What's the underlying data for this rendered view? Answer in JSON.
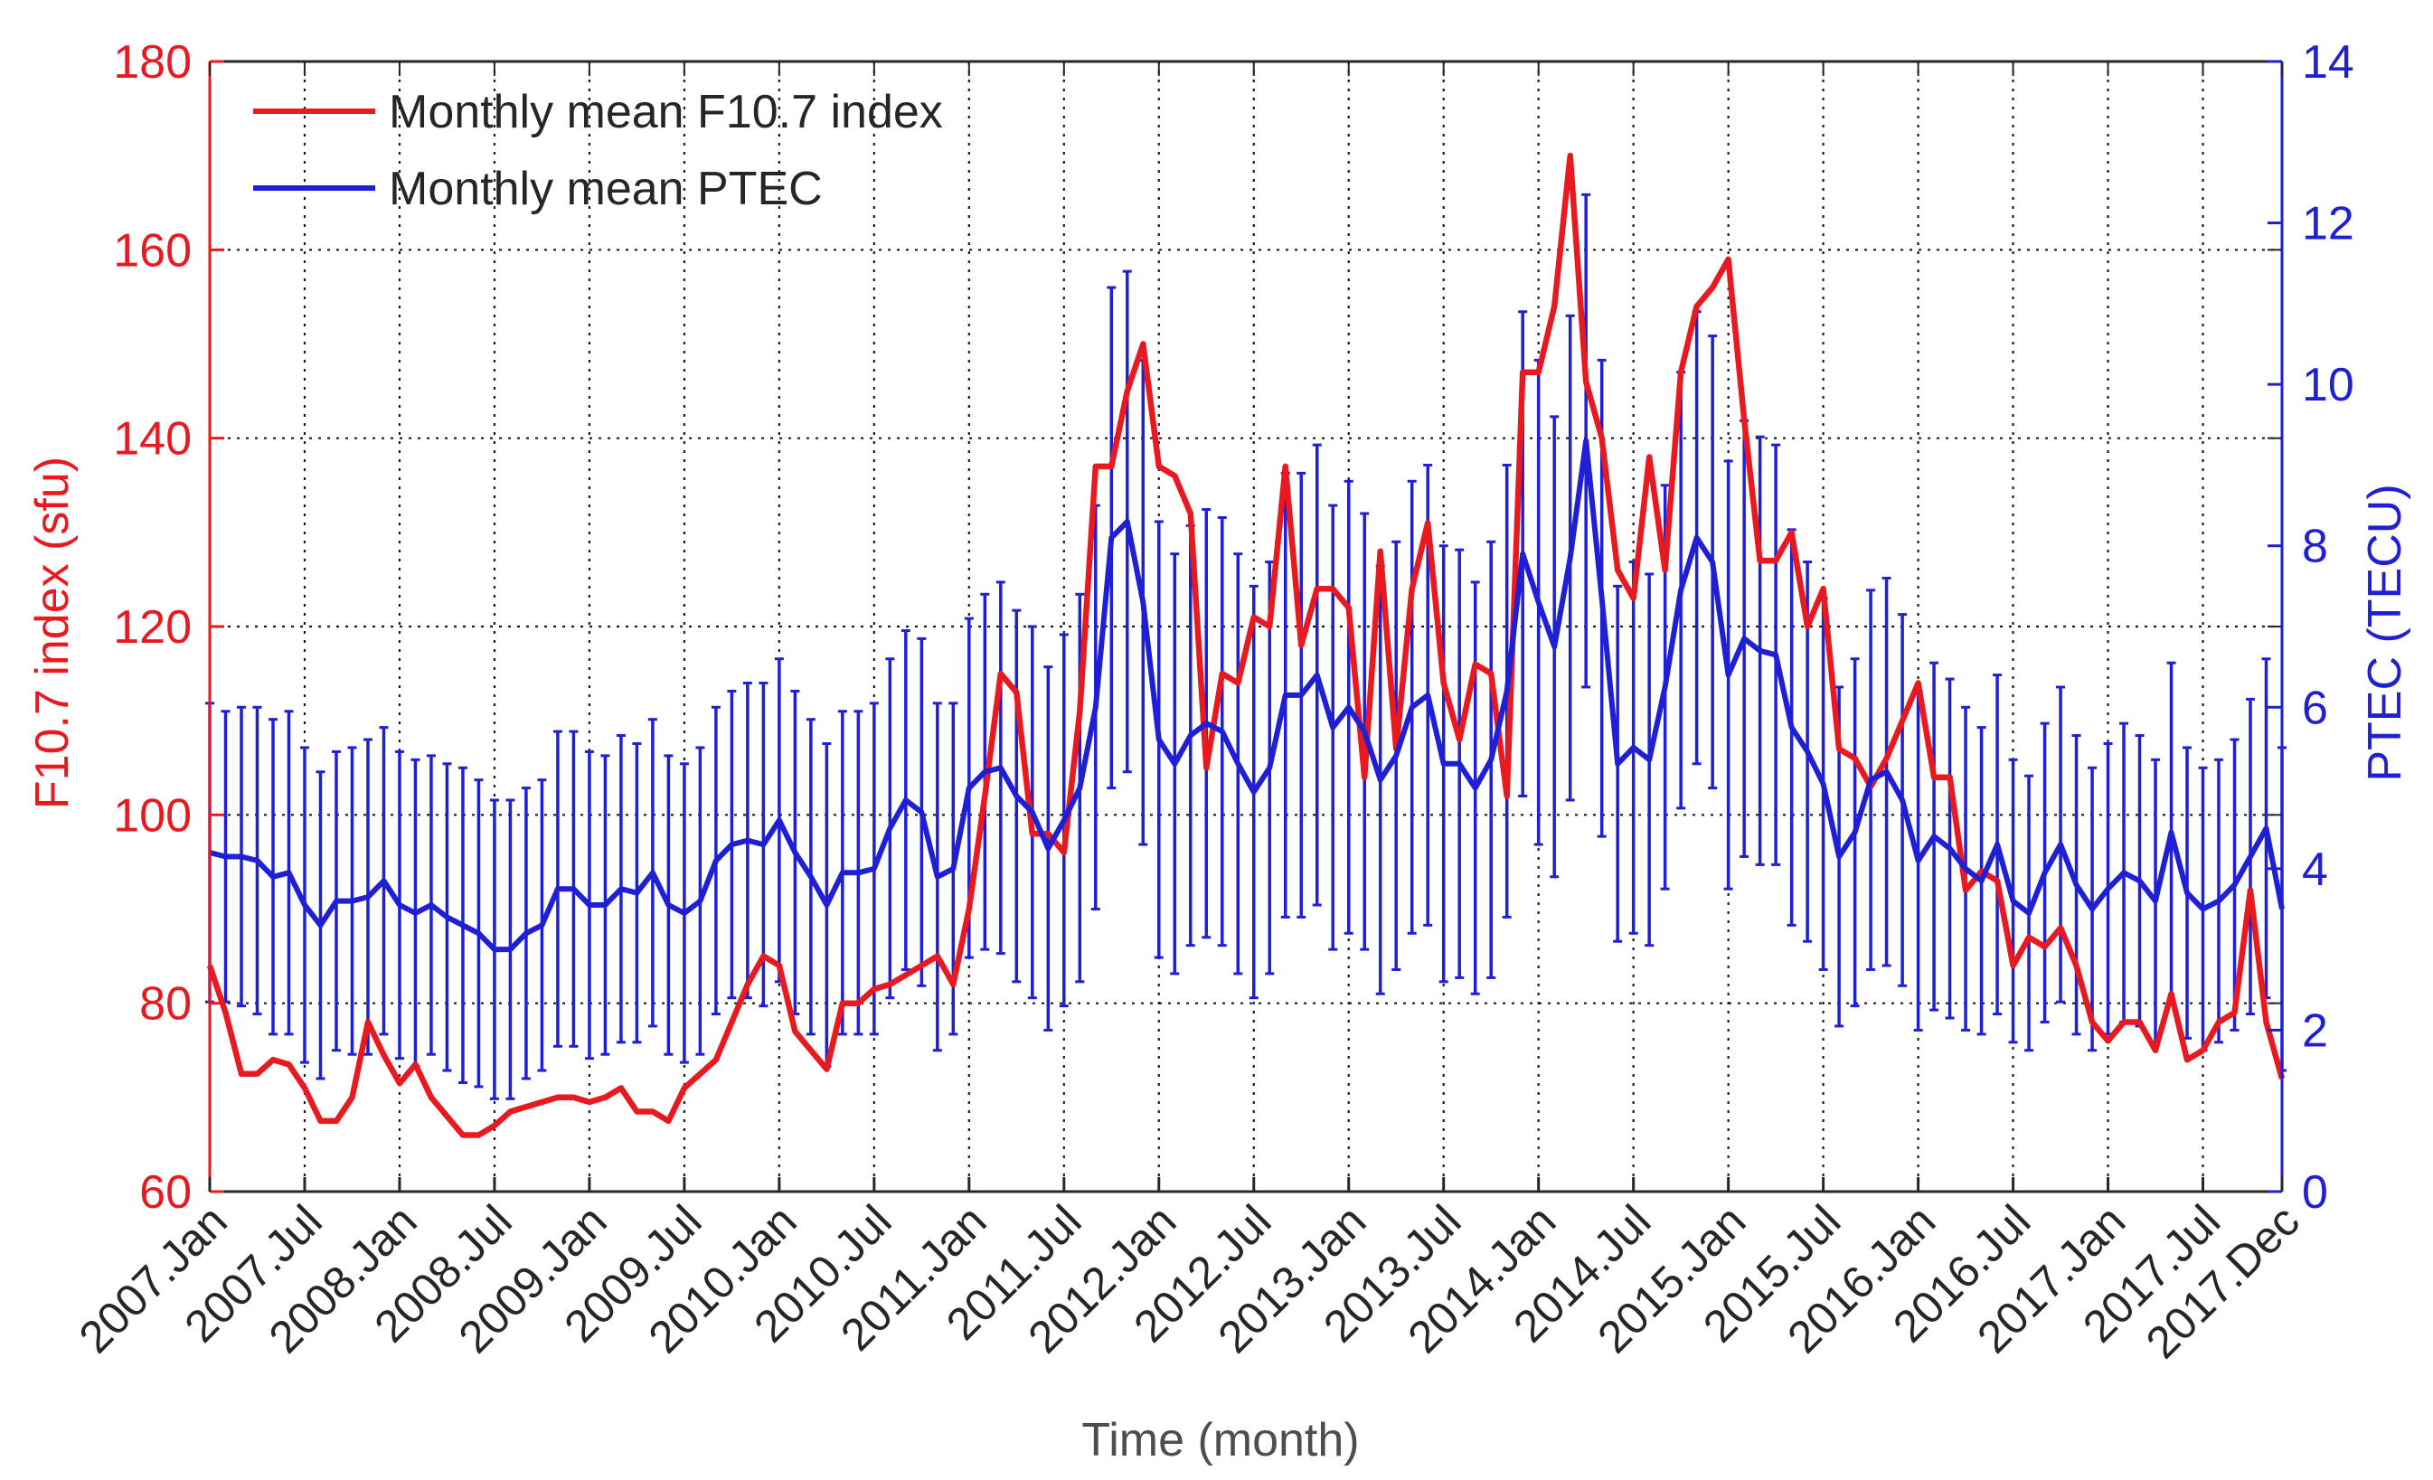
{
  "chart_data": {
    "type": "line",
    "title": "",
    "xlabel": "Time (month)",
    "ylabel_left": "F10.7 index (sfu)",
    "ylabel_right": "PTEC (TECU)",
    "ylim_left": [
      60,
      180
    ],
    "ylim_right": [
      0,
      14
    ],
    "yticks_left": [
      60,
      80,
      100,
      120,
      140,
      160,
      180
    ],
    "yticks_right": [
      0,
      2,
      4,
      6,
      8,
      10,
      12,
      14
    ],
    "x_tick_labels": [
      "2007.Jan",
      "2007.Jul",
      "2008.Jan",
      "2008.Jul",
      "2009.Jan",
      "2009.Jul",
      "2010.Jan",
      "2010.Jul",
      "2011.Jan",
      "2011.Jul",
      "2012.Jan",
      "2012.Jul",
      "2013.Jan",
      "2013.Jul",
      "2014.Jan",
      "2014.Jul",
      "2015.Jan",
      "2015.Jul",
      "2016.Jan",
      "2016.Jul",
      "2017.Jan",
      "2017.Jul",
      "2017.Dec"
    ],
    "x_tick_month_index": [
      0,
      6,
      12,
      18,
      24,
      30,
      36,
      42,
      48,
      54,
      60,
      66,
      72,
      78,
      84,
      90,
      96,
      102,
      108,
      114,
      120,
      126,
      131
    ],
    "grid": true,
    "legend_position": "top-left",
    "series": [
      {
        "name": "Monthly mean F10.7 index",
        "axis": "left",
        "color": "#e8191f",
        "x_start": "2007.Jan",
        "values": [
          84,
          79,
          72.5,
          72.5,
          74,
          73.5,
          71,
          67.5,
          67.5,
          70,
          78,
          74.5,
          71.5,
          73.5,
          70,
          68,
          66,
          66,
          67,
          68.5,
          69,
          69.5,
          70,
          70,
          69.5,
          70,
          71,
          68.5,
          68.5,
          67.5,
          71,
          72.5,
          74,
          78,
          82,
          85,
          84,
          77,
          75,
          73,
          80,
          80,
          81.5,
          82,
          83,
          84,
          85,
          82,
          90,
          102,
          115,
          113,
          98,
          98,
          96,
          111,
          137,
          137,
          145,
          150,
          137,
          136,
          132,
          105,
          115,
          114,
          121,
          120,
          137,
          118,
          124,
          124,
          122,
          104,
          128,
          107,
          124,
          131,
          114,
          108,
          116,
          115,
          102,
          147,
          147,
          154,
          170,
          146,
          140,
          126,
          123,
          138,
          126,
          147,
          154,
          156,
          159,
          142,
          127,
          127,
          130,
          120,
          124,
          107,
          106,
          103,
          106,
          110,
          114,
          104,
          104,
          92,
          94,
          93,
          84,
          87,
          86,
          88,
          84,
          78,
          76,
          78,
          78,
          75,
          81,
          74,
          75,
          78,
          79,
          92,
          78,
          72
        ]
      },
      {
        "name": "Monthly mean PTEC",
        "axis": "right",
        "color": "#1f1fd6",
        "x_start": "2007.Jan",
        "values": [
          4.2,
          4.15,
          4.15,
          4.1,
          3.9,
          3.95,
          3.55,
          3.3,
          3.6,
          3.6,
          3.65,
          3.85,
          3.55,
          3.45,
          3.55,
          3.4,
          3.3,
          3.2,
          3.0,
          3.0,
          3.2,
          3.3,
          3.75,
          3.75,
          3.55,
          3.55,
          3.75,
          3.7,
          3.95,
          3.55,
          3.45,
          3.6,
          4.1,
          4.3,
          4.35,
          4.3,
          4.6,
          4.2,
          3.9,
          3.55,
          3.95,
          3.95,
          4.0,
          4.5,
          4.85,
          4.7,
          3.9,
          4.0,
          5.0,
          5.2,
          5.25,
          4.9,
          4.7,
          4.25,
          4.6,
          5.0,
          6.0,
          8.1,
          8.3,
          7.3,
          5.6,
          5.3,
          5.65,
          5.8,
          5.7,
          5.3,
          4.95,
          5.25,
          6.15,
          6.15,
          6.4,
          5.75,
          6.0,
          5.7,
          5.1,
          5.4,
          6.0,
          6.15,
          5.3,
          5.3,
          5.0,
          5.35,
          6.2,
          7.9,
          7.3,
          6.75,
          7.85,
          9.3,
          7.35,
          5.3,
          5.5,
          5.35,
          6.25,
          7.45,
          8.1,
          7.8,
          6.4,
          6.85,
          6.7,
          6.65,
          5.75,
          5.45,
          5.05,
          4.15,
          4.45,
          5.1,
          5.2,
          4.85,
          4.1,
          4.4,
          4.25,
          4.0,
          3.85,
          4.3,
          3.6,
          3.45,
          3.95,
          4.3,
          3.8,
          3.5,
          3.75,
          3.95,
          3.85,
          3.6,
          4.45,
          3.7,
          3.5,
          3.6,
          3.8,
          4.15,
          4.5,
          3.5
        ],
        "error_half_width": [
          1.85,
          1.8,
          1.85,
          1.9,
          1.95,
          2.0,
          1.95,
          1.9,
          1.85,
          1.9,
          1.95,
          1.9,
          1.9,
          1.9,
          1.85,
          1.9,
          1.95,
          1.9,
          1.85,
          1.85,
          1.8,
          1.8,
          1.95,
          1.95,
          1.9,
          1.85,
          1.9,
          1.85,
          1.9,
          1.85,
          1.85,
          1.9,
          1.9,
          1.9,
          1.95,
          2.0,
          2.0,
          2.0,
          1.95,
          2.0,
          2.0,
          2.0,
          2.05,
          2.1,
          2.1,
          2.15,
          2.15,
          2.05,
          2.1,
          2.2,
          2.3,
          2.3,
          2.3,
          2.25,
          2.3,
          2.4,
          2.5,
          3.1,
          3.1,
          3.0,
          2.7,
          2.6,
          2.6,
          2.65,
          2.65,
          2.6,
          2.55,
          2.55,
          2.75,
          2.75,
          2.85,
          2.75,
          2.8,
          2.7,
          2.65,
          2.65,
          2.8,
          2.85,
          2.7,
          2.65,
          2.55,
          2.7,
          2.8,
          3.0,
          3.0,
          2.85,
          3.0,
          3.05,
          2.95,
          2.2,
          2.3,
          2.3,
          2.5,
          2.7,
          2.8,
          2.8,
          2.65,
          2.7,
          2.65,
          2.6,
          2.45,
          2.35,
          2.3,
          2.1,
          2.15,
          2.35,
          2.4,
          2.3,
          2.1,
          2.15,
          2.1,
          2.0,
          1.9,
          2.1,
          1.75,
          1.7,
          1.85,
          1.95,
          1.85,
          1.75,
          1.8,
          1.85,
          1.8,
          1.75,
          2.1,
          1.8,
          1.75,
          1.75,
          1.8,
          1.95,
          2.1,
          2.0
        ]
      }
    ]
  }
}
